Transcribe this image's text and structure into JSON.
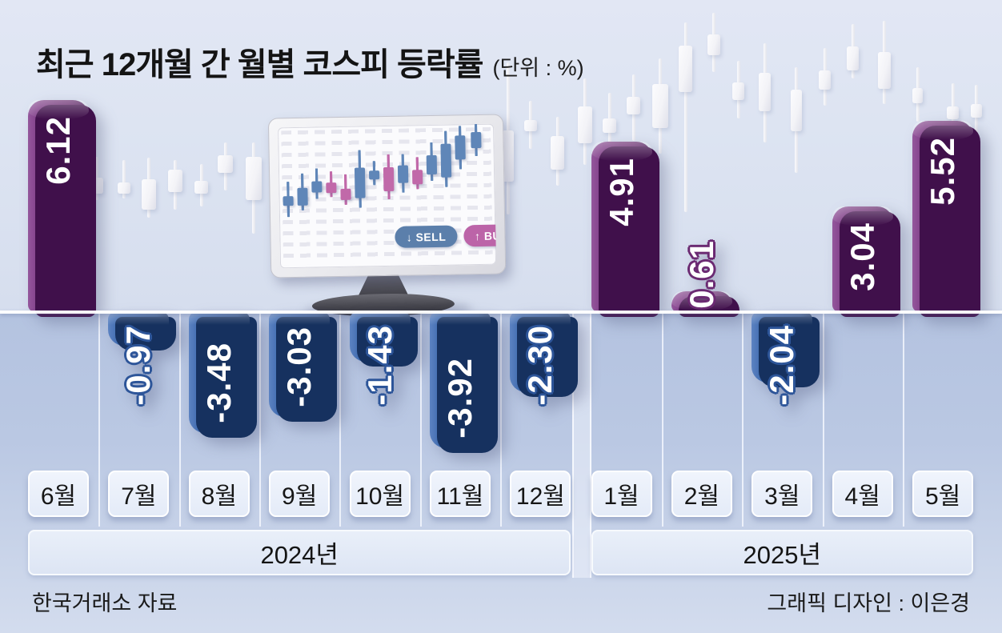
{
  "header": {
    "title": "최근 12개월 간 월별 코스피 등락률",
    "unit": "(단위 : %)"
  },
  "chart_data": {
    "type": "bar",
    "title": "최근 12개월 간 월별 코스피 등락률",
    "unit_label": "(단위 : %)",
    "categories": [
      "6월",
      "7월",
      "8월",
      "9월",
      "10월",
      "11월",
      "12월",
      "1월",
      "2월",
      "3월",
      "4월",
      "5월"
    ],
    "values": [
      6.12,
      -0.97,
      -3.48,
      -3.03,
      -1.43,
      -3.92,
      -2.3,
      4.91,
      0.61,
      -2.04,
      3.04,
      5.52
    ],
    "value_labels": [
      "6.12",
      "-0.97",
      "-3.48",
      "-3.03",
      "-1.43",
      "-3.92",
      "-2.30",
      "4.91",
      "0.61",
      "-2.04",
      "3.04",
      "5.52"
    ],
    "groups": [
      {
        "label": "2024년",
        "from": 0,
        "to": 6
      },
      {
        "label": "2025년",
        "from": 7,
        "to": 11
      }
    ],
    "ylabel": "",
    "xlabel": "",
    "ylim": [
      -4.5,
      6.5
    ],
    "baseline_value": 0,
    "grid": false,
    "legend": "none"
  },
  "footer": {
    "source": "한국거래소 자료",
    "credit": "그래픽 디자인 : 이은경"
  },
  "monitor": {
    "sell_label": "↓ SELL",
    "buy_label": "↑ BUY"
  },
  "palette": {
    "positive_bar": "#6b2a72",
    "positive_dark": "#40104b",
    "positive_light": "#94579c",
    "negative_bar": "#2d5599",
    "negative_dark": "#16315f",
    "negative_light": "#5c83c2",
    "background_top": "#dde4f2",
    "background_lower": "#b7c5e1",
    "candle_white": "#f4f4f7",
    "sell_button": "#5b7fab",
    "buy_button": "#bc64a8",
    "screen_candle_blue": "#5f86b8",
    "screen_candle_pink": "#c169a9"
  },
  "decor": {
    "background_candles": [
      [
        113,
        16,
        222,
        20,
        196,
        250
      ],
      [
        147,
        16,
        228,
        14,
        200,
        248
      ],
      [
        177,
        18,
        224,
        38,
        197,
        272
      ],
      [
        210,
        18,
        212,
        28,
        200,
        262
      ],
      [
        243,
        17,
        226,
        16,
        205,
        258
      ],
      [
        272,
        19,
        194,
        22,
        178,
        238
      ],
      [
        307,
        20,
        196,
        54,
        178,
        292
      ],
      [
        627,
        15,
        163,
        64,
        78,
        268
      ],
      [
        655,
        16,
        150,
        14,
        126,
        186
      ],
      [
        688,
        17,
        170,
        42,
        146,
        232
      ],
      [
        722,
        18,
        133,
        46,
        98,
        206
      ],
      [
        753,
        17,
        148,
        18,
        116,
        196
      ],
      [
        783,
        17,
        121,
        22,
        93,
        176
      ],
      [
        815,
        20,
        105,
        55,
        73,
        192
      ],
      [
        848,
        17,
        57,
        58,
        28,
        265
      ],
      [
        884,
        16,
        43,
        26,
        16,
        90
      ],
      [
        915,
        15,
        103,
        22,
        76,
        148
      ],
      [
        948,
        15,
        91,
        48,
        54,
        178
      ],
      [
        988,
        14,
        112,
        52,
        84,
        216
      ],
      [
        1023,
        15,
        88,
        24,
        60,
        132
      ],
      [
        1058,
        15,
        58,
        30,
        30,
        98
      ],
      [
        1097,
        16,
        65,
        46,
        26,
        130
      ],
      [
        1140,
        13,
        110,
        19,
        84,
        152
      ],
      [
        1183,
        15,
        133,
        16,
        104,
        182
      ],
      [
        1213,
        14,
        130,
        17,
        106,
        170
      ]
    ],
    "monitor_candles": [
      [
        10,
        86,
        12,
        68,
        112,
        "b"
      ],
      [
        28,
        76,
        22,
        58,
        104,
        "b"
      ],
      [
        46,
        68,
        14,
        52,
        90,
        "b"
      ],
      [
        64,
        70,
        13,
        56,
        88,
        "p"
      ],
      [
        82,
        78,
        14,
        60,
        98,
        "p"
      ],
      [
        100,
        52,
        38,
        30,
        102,
        "b"
      ],
      [
        118,
        56,
        11,
        44,
        74,
        "b"
      ],
      [
        136,
        52,
        30,
        36,
        92,
        "p"
      ],
      [
        154,
        50,
        22,
        36,
        84,
        "b"
      ],
      [
        172,
        56,
        18,
        40,
        80,
        "p"
      ],
      [
        190,
        38,
        24,
        22,
        70,
        "b"
      ],
      [
        208,
        24,
        42,
        8,
        78,
        "b"
      ],
      [
        226,
        14,
        30,
        2,
        56,
        "b"
      ],
      [
        246,
        10,
        20,
        0,
        40,
        "b"
      ]
    ]
  }
}
